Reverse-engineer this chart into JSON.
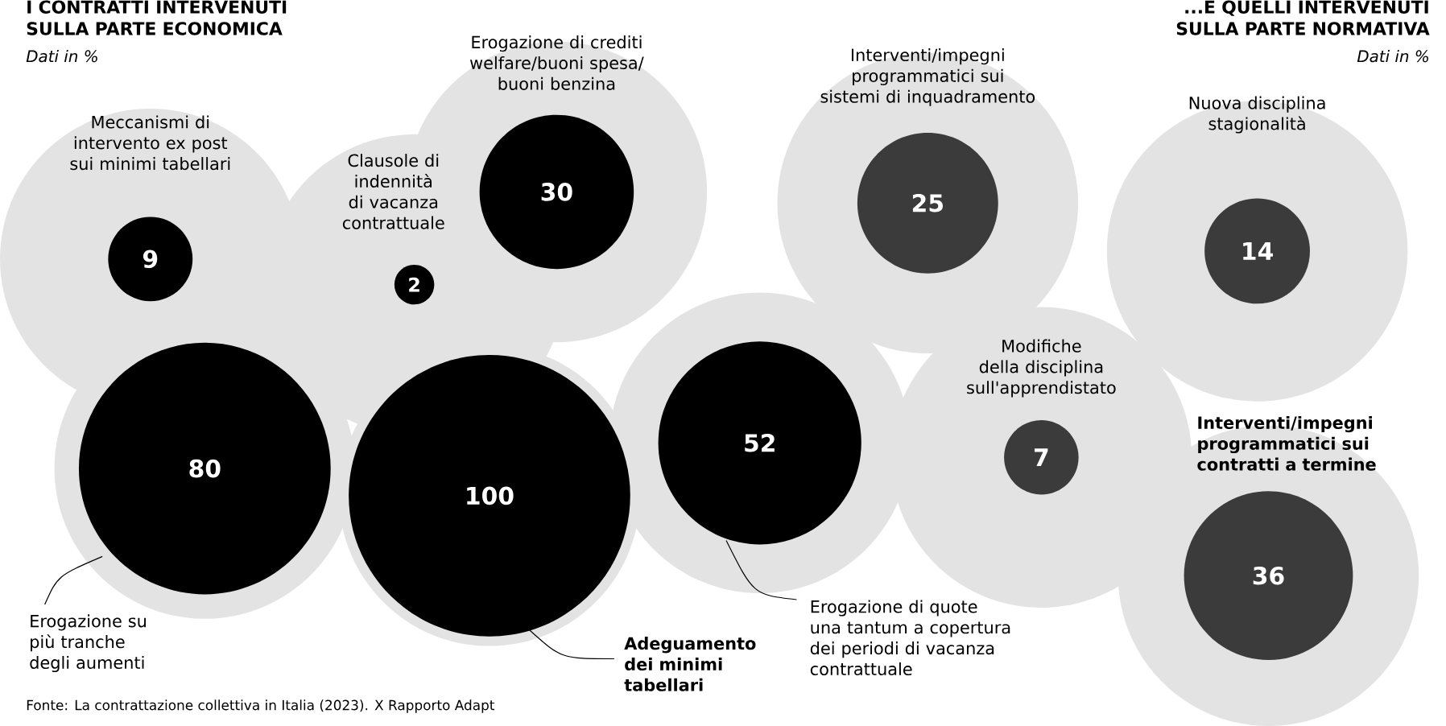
{
  "chart_data": {
    "type": "other",
    "title": "I CONTRATTI INTERVENUTI SULLA PARTE ECONOMICA",
    "subtitle": "Dati in %",
    "categories": [
      "Meccanismi di intervento ex post sui minimi tabellari",
      "Clausole di indennità di vacanza contrattuale",
      "Erogazione di crediti welfare/buoni spesa/ buoni benzina",
      "Interventi/impegni programmatici sui sistemi di inquadramento",
      "Nuova disciplina stagionalità",
      "Erogazione su più tranche degli aumenti",
      "Adeguamento dei minimi tabellari",
      "Erogazione di quote una tantum a copertura dei periodi di vacanza contrattuale",
      "Modifiche della disciplina sull'apprendistato",
      "Interventi/impegni programmatici sui contratti a termine"
    ],
    "values": [
      9,
      2,
      30,
      25,
      14,
      80,
      100,
      52,
      7,
      36
    ],
    "colors": [
      "#000000",
      "#000000",
      "#000000",
      "#3b3b3b",
      "#3b3b3b",
      "#000000",
      "#000000",
      "#000000",
      "#3b3b3b",
      "#3b3b3b"
    ],
    "data_labels": true,
    "annotations": [
      "...E QUELLI INTERVENUTI SULLA PARTE NORMATIVA",
      "Dati in %",
      "Fonte: La contrattazione collettiva in Italia (2023). X Rapporto Adapt"
    ]
  }
}
